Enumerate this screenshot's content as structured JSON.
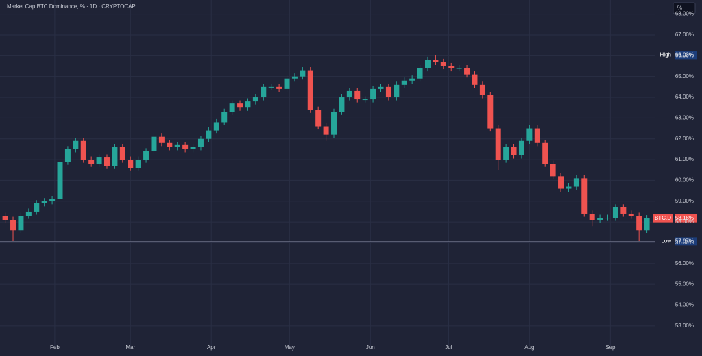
{
  "chart_data": {
    "type": "candlestick",
    "title": "Market Cap BTC Dominance, % · 1D · CRYPTOCAP",
    "scale_button": "%",
    "up_color": "#26a69a",
    "down_color": "#ef5350",
    "grid": true,
    "x": [
      13,
      16,
      19,
      22,
      25,
      28,
      31,
      34,
      37,
      40,
      43,
      46,
      49,
      52,
      55,
      58,
      61,
      64,
      67,
      70,
      73,
      76,
      79,
      82,
      85,
      88,
      91,
      94,
      97,
      100,
      103,
      106,
      109,
      112,
      115,
      118,
      121,
      124,
      127,
      130,
      133,
      136,
      139,
      142,
      145,
      148,
      151,
      154,
      157,
      160,
      163,
      166,
      169,
      172,
      175,
      178,
      181,
      184,
      187,
      190,
      193,
      196,
      199,
      202,
      205,
      208,
      211,
      214,
      217,
      220,
      223,
      226,
      229,
      232,
      235,
      238,
      241,
      244,
      247,
      250,
      253,
      256,
      259
    ],
    "open": [
      58.3,
      58.1,
      57.6,
      58.3,
      58.5,
      58.9,
      59.0,
      59.1,
      60.9,
      61.5,
      61.9,
      61.0,
      60.8,
      61.1,
      60.7,
      61.6,
      61.0,
      60.6,
      61.0,
      61.4,
      62.1,
      61.8,
      61.6,
      61.7,
      61.5,
      61.6,
      62.0,
      62.4,
      62.8,
      63.3,
      63.7,
      63.5,
      63.8,
      64.0,
      64.5,
      64.5,
      64.4,
      64.9,
      65.0,
      65.3,
      63.4,
      62.6,
      62.2,
      63.3,
      64.0,
      64.3,
      63.9,
      63.9,
      64.4,
      64.5,
      64.0,
      64.6,
      64.8,
      64.9,
      65.4,
      65.8,
      65.7,
      65.5,
      65.4,
      65.4,
      65.1,
      64.6,
      64.1,
      62.5,
      61.0,
      61.6,
      61.2,
      61.9,
      62.5,
      61.8,
      60.8,
      60.2,
      59.6,
      59.7,
      60.1,
      58.4,
      58.1,
      58.2,
      58.2,
      58.7,
      58.4,
      58.3,
      57.6
    ],
    "high": [
      58.45,
      58.25,
      58.45,
      58.65,
      59.05,
      59.15,
      59.25,
      64.4,
      61.65,
      62.05,
      62.05,
      61.15,
      61.25,
      61.25,
      61.75,
      61.75,
      61.15,
      61.15,
      61.55,
      62.25,
      62.25,
      61.95,
      61.85,
      61.85,
      61.75,
      62.15,
      62.55,
      62.95,
      63.45,
      63.85,
      63.85,
      63.95,
      64.15,
      64.65,
      64.65,
      64.65,
      65.05,
      65.15,
      65.45,
      65.45,
      63.55,
      62.75,
      63.45,
      64.15,
      64.45,
      64.45,
      64.05,
      64.55,
      64.65,
      64.65,
      64.75,
      64.95,
      65.05,
      65.55,
      65.95,
      66.03,
      65.85,
      65.65,
      65.55,
      65.55,
      65.25,
      64.75,
      64.25,
      62.65,
      61.75,
      61.75,
      62.05,
      62.65,
      62.65,
      61.95,
      60.95,
      60.35,
      59.85,
      60.25,
      60.25,
      58.55,
      58.35,
      58.35,
      58.85,
      58.85,
      58.55,
      58.45,
      58.33
    ],
    "low": [
      57.95,
      57.07,
      57.45,
      58.15,
      58.35,
      58.75,
      58.85,
      58.95,
      60.75,
      61.35,
      60.85,
      60.65,
      60.65,
      60.55,
      60.55,
      60.85,
      60.45,
      60.45,
      60.85,
      61.25,
      61.65,
      61.45,
      61.45,
      61.35,
      61.35,
      61.45,
      61.85,
      62.25,
      62.65,
      63.15,
      63.35,
      63.35,
      63.65,
      63.85,
      64.35,
      64.25,
      64.25,
      64.75,
      64.85,
      63.25,
      62.45,
      61.9,
      62.05,
      63.15,
      63.85,
      63.75,
      63.75,
      63.75,
      64.25,
      63.85,
      63.85,
      64.45,
      64.65,
      64.75,
      65.25,
      65.55,
      65.35,
      65.25,
      65.25,
      64.95,
      64.45,
      63.95,
      62.35,
      60.5,
      60.85,
      61.05,
      61.05,
      61.75,
      61.65,
      60.65,
      60.05,
      59.45,
      59.45,
      59.55,
      58.25,
      57.8,
      57.95,
      58.05,
      58.05,
      58.25,
      58.15,
      57.07,
      57.45
    ],
    "close": [
      58.1,
      57.6,
      58.3,
      58.5,
      58.9,
      59.0,
      59.1,
      60.9,
      61.5,
      61.9,
      61.0,
      60.8,
      61.1,
      60.7,
      61.6,
      61.0,
      60.6,
      61.0,
      61.4,
      62.1,
      61.8,
      61.6,
      61.7,
      61.5,
      61.6,
      62.0,
      62.4,
      62.8,
      63.3,
      63.7,
      63.5,
      63.8,
      64.0,
      64.5,
      64.5,
      64.4,
      64.9,
      65.0,
      65.3,
      63.4,
      62.6,
      62.2,
      63.3,
      64.0,
      64.3,
      63.9,
      63.9,
      64.4,
      64.5,
      64.0,
      64.6,
      64.8,
      64.9,
      65.4,
      65.8,
      65.7,
      65.5,
      65.4,
      65.4,
      65.1,
      64.6,
      64.1,
      62.5,
      61.0,
      61.6,
      61.2,
      61.9,
      62.5,
      61.8,
      60.8,
      60.2,
      59.6,
      59.7,
      60.1,
      58.4,
      58.1,
      58.2,
      58.2,
      58.7,
      58.4,
      58.3,
      57.6,
      58.18
    ],
    "xlim": [
      11,
      262
    ],
    "xticks": [
      {
        "value": 32,
        "label": "Feb"
      },
      {
        "value": 61,
        "label": "Mar"
      },
      {
        "value": 92,
        "label": "Apr"
      },
      {
        "value": 122,
        "label": "May"
      },
      {
        "value": 153,
        "label": "Jun"
      },
      {
        "value": 183,
        "label": "Jul"
      },
      {
        "value": 214,
        "label": "Aug"
      },
      {
        "value": 245,
        "label": "Sep"
      }
    ],
    "ylim": [
      52.04,
      68.68
    ],
    "yticks": [
      {
        "value": 53,
        "label": "53.00%"
      },
      {
        "value": 54,
        "label": "54.00%"
      },
      {
        "value": 55,
        "label": "55.00%"
      },
      {
        "value": 56,
        "label": "56.00%"
      },
      {
        "value": 57,
        "label": "57.00%"
      },
      {
        "value": 58,
        "label": "58.00%"
      },
      {
        "value": 59,
        "label": "59.00%"
      },
      {
        "value": 60,
        "label": "60.00%"
      },
      {
        "value": 61,
        "label": "61.00%"
      },
      {
        "value": 62,
        "label": "62.00%"
      },
      {
        "value": 63,
        "label": "63.00%"
      },
      {
        "value": 64,
        "label": "64.00%"
      },
      {
        "value": 65,
        "label": "65.00%"
      },
      {
        "value": 66,
        "label": "66.00%"
      },
      {
        "value": 67,
        "label": "67.00%"
      },
      {
        "value": 68,
        "label": "68.00%"
      }
    ],
    "annotations": [
      {
        "text": "High",
        "value": 66.03,
        "value_label": "66.03%",
        "color": "#1c3d7a"
      },
      {
        "text": "Low",
        "value": 57.07,
        "value_label": "57.07%",
        "color": "#1c3d7a"
      },
      {
        "text": "BTC.D",
        "value": 58.18,
        "value_label": "58.18%",
        "color": "#ef5350"
      }
    ]
  }
}
